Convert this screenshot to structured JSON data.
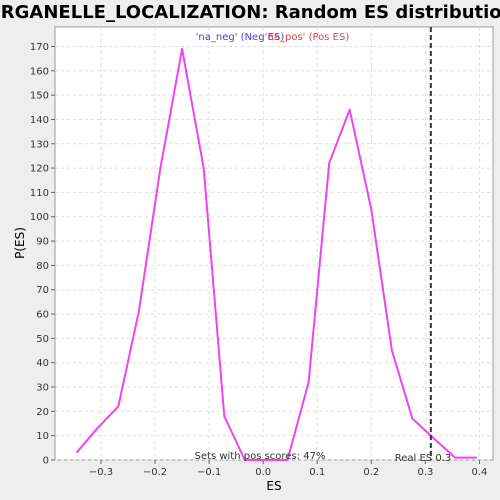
{
  "chart_data": {
    "type": "line",
    "title": "ORGANELLE_LOCALIZATION: Random ES distribution",
    "xlabel": "ES",
    "ylabel": "P(ES)",
    "xlim": [
      -0.385,
      0.425
    ],
    "ylim": [
      0,
      178
    ],
    "xticks": [
      -0.3,
      -0.2,
      -0.1,
      0.0,
      0.1,
      0.2,
      0.3,
      0.4
    ],
    "xtick_labels": [
      "−0.3",
      "−0.2",
      "−0.1",
      "0.0",
      "0.1",
      "0.2",
      "0.3",
      "0.4"
    ],
    "yticks": [
      0,
      10,
      20,
      30,
      40,
      50,
      60,
      70,
      80,
      90,
      100,
      110,
      120,
      130,
      140,
      150,
      160,
      170
    ],
    "grid": true,
    "legend": [
      {
        "label": "'na_neg' (Neg ES)",
        "color": "#4444dd"
      },
      {
        "label": "'na_pos' (Pos ES)",
        "color": "#dd4444"
      }
    ],
    "series": [
      {
        "color": "#ee44ee",
        "x": [
          -0.345,
          -0.307,
          -0.268,
          -0.23,
          -0.19,
          -0.15,
          -0.11,
          -0.072,
          -0.034,
          0.005,
          0.045,
          0.084,
          0.122,
          0.16,
          0.2,
          0.238,
          0.276,
          0.315,
          0.355,
          0.395
        ],
        "y": [
          3,
          13,
          22,
          61,
          120,
          169,
          120,
          18,
          0,
          0,
          0,
          32,
          122,
          144,
          103,
          45,
          17,
          9,
          1,
          1
        ]
      }
    ],
    "real_es": {
      "x": 0.31,
      "label": "Real ES 0.3",
      "color": "#333333"
    },
    "annotation": "Sets with pos scores: 47%"
  }
}
